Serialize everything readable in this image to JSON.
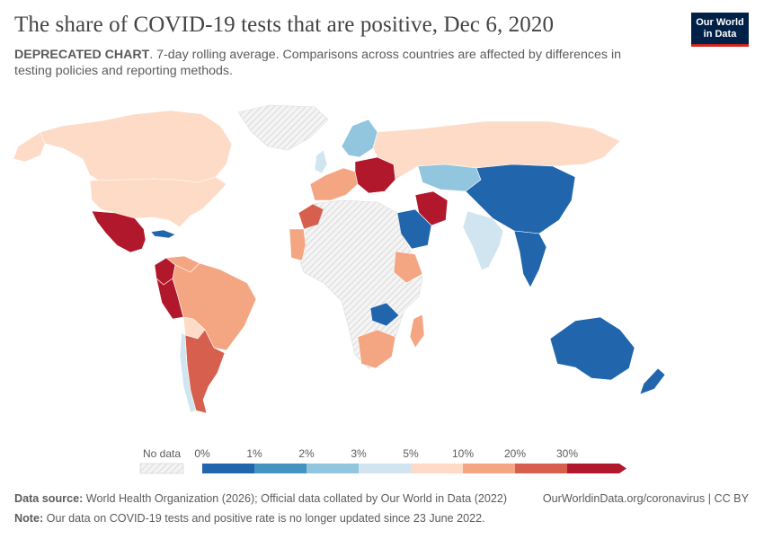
{
  "title": "The share of COVID-19 tests that are positive, Dec 6, 2020",
  "subtitle_bold": "DEPRECATED CHART",
  "subtitle_rest": ". 7-day rolling average. Comparisons across countries are affected by differences in testing policies and reporting methods.",
  "logo": {
    "line1": "Our World",
    "line2": "in Data"
  },
  "legend": {
    "no_data_label": "No data",
    "bins": [
      {
        "label": "0%",
        "color": "#2166ac"
      },
      {
        "label": "1%",
        "color": "#4393c3"
      },
      {
        "label": "2%",
        "color": "#92c5de"
      },
      {
        "label": "3%",
        "color": "#d1e5f0"
      },
      {
        "label": "5%",
        "color": "#fddbc7"
      },
      {
        "label": "10%",
        "color": "#f4a582"
      },
      {
        "label": "20%",
        "color": "#d6604d"
      },
      {
        "label": "30%",
        "color": "#b2182b"
      }
    ]
  },
  "colors": {
    "no_data": "#f0f0f0",
    "hatch": "#c8c8c8",
    "border": "#ffffff"
  },
  "footer": {
    "source_label": "Data source:",
    "source_text": " World Health Organization (2026); Official data collated by Our World in Data (2022)",
    "url": "OurWorldinData.org/coronavirus | CC BY",
    "note_label": "Note:",
    "note_text": " Our data on COVID-19 tests and positive rate is no longer updated since 23 June 2022."
  },
  "regions": [
    {
      "name": "canada",
      "bin": 4
    },
    {
      "name": "usa",
      "bin": 4
    },
    {
      "name": "mexico",
      "bin": 7
    },
    {
      "name": "greenland",
      "bin": -1
    },
    {
      "name": "cuba",
      "bin": 0
    },
    {
      "name": "colombia",
      "bin": 7
    },
    {
      "name": "venezuela",
      "bin": 5
    },
    {
      "name": "peru",
      "bin": 7
    },
    {
      "name": "brazil",
      "bin": 5
    },
    {
      "name": "bolivia",
      "bin": 4
    },
    {
      "name": "argentina",
      "bin": 6
    },
    {
      "name": "chile",
      "bin": 3
    },
    {
      "name": "uk",
      "bin": 3
    },
    {
      "name": "western-europe",
      "bin": 5
    },
    {
      "name": "eastern-europe",
      "bin": 7
    },
    {
      "name": "scandinavia",
      "bin": 2
    },
    {
      "name": "russia",
      "bin": 4
    },
    {
      "name": "kazakhstan",
      "bin": 2
    },
    {
      "name": "iran",
      "bin": 7
    },
    {
      "name": "saudi-arabia",
      "bin": 0
    },
    {
      "name": "china",
      "bin": 0
    },
    {
      "name": "india",
      "bin": 3
    },
    {
      "name": "southeast-asia",
      "bin": 0
    },
    {
      "name": "morocco",
      "bin": 6
    },
    {
      "name": "west-africa",
      "bin": 5
    },
    {
      "name": "ethiopia",
      "bin": 5
    },
    {
      "name": "south-africa",
      "bin": 5
    },
    {
      "name": "zambia",
      "bin": 0
    },
    {
      "name": "madagascar",
      "bin": 5
    },
    {
      "name": "australia",
      "bin": 0
    },
    {
      "name": "new-zealand",
      "bin": 0
    },
    {
      "name": "africa-no-data",
      "bin": -1
    }
  ]
}
